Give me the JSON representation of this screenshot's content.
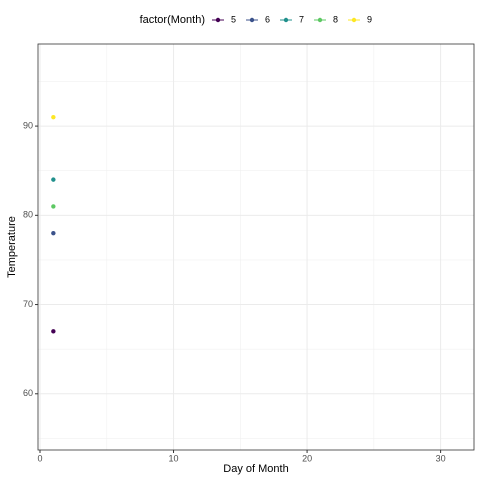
{
  "chart_data": {
    "type": "scatter",
    "x_label": "Day of Month",
    "y_label": "Temperature",
    "legend_title": "factor(Month)",
    "legend_position": "top",
    "series": [
      {
        "name": "5",
        "color": "#440154",
        "x": [
          1
        ],
        "values": [
          67
        ]
      },
      {
        "name": "6",
        "color": "#3b528b",
        "x": [
          1
        ],
        "values": [
          78
        ]
      },
      {
        "name": "7",
        "color": "#21908c",
        "x": [
          1
        ],
        "values": [
          84
        ]
      },
      {
        "name": "8",
        "color": "#5dc863",
        "x": [
          1
        ],
        "values": [
          81
        ]
      },
      {
        "name": "9",
        "color": "#fde725",
        "x": [
          1
        ],
        "values": [
          91
        ]
      }
    ],
    "xlim": [
      -0.15,
      32.5
    ],
    "xticks": [
      0,
      10,
      20,
      30
    ],
    "x_minor_ticks": [
      5,
      15,
      25
    ],
    "ylim": [
      53.7,
      99.2
    ],
    "yticks": [
      60,
      70,
      80,
      90
    ],
    "y_minor_ticks": [
      55,
      65,
      75,
      85,
      95
    ],
    "grid": true
  }
}
